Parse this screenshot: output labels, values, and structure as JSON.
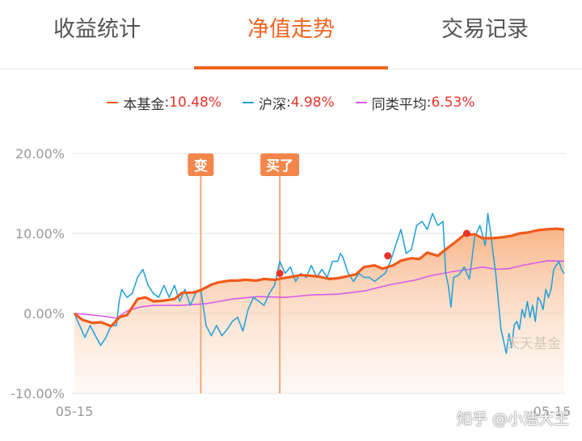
{
  "tabs": [
    {
      "label": "收益统计"
    },
    {
      "label": "净值走势"
    },
    {
      "label": "交易记录"
    }
  ],
  "active_tab": 1,
  "legend": [
    {
      "name": "本基金",
      "sep": ":",
      "value": "10.48%",
      "color": "#f05a1a"
    },
    {
      "name": "沪深",
      "sep": ":",
      "value": "4.98%",
      "color": "#2aa3d8"
    },
    {
      "name": "同类平均",
      "sep": ":",
      "value": "6.53%",
      "color": "#d85ce8"
    }
  ],
  "chart_data": {
    "type": "line",
    "x_start_label": "05-15",
    "x_end_label": "05-15",
    "ylim": [
      -10,
      20
    ],
    "yticks": [
      "20.00%",
      "10.00%",
      "0.00%",
      "-10.00%"
    ],
    "ytick_values": [
      20,
      10,
      0,
      -10
    ],
    "grid": true,
    "series": [
      {
        "name": "本基金",
        "color": "#f05a1a",
        "area_fill": true,
        "points": [
          [
            0,
            0
          ],
          [
            3,
            -0.8
          ],
          [
            7,
            -1.2
          ],
          [
            10,
            -1.1
          ],
          [
            14,
            -1.6
          ],
          [
            17,
            -0.5
          ],
          [
            20,
            -0.2
          ],
          [
            24,
            1.8
          ],
          [
            27,
            2.0
          ],
          [
            30,
            1.5
          ],
          [
            34,
            1.6
          ],
          [
            38,
            1.8
          ],
          [
            41,
            2.6
          ],
          [
            45,
            2.6
          ],
          [
            48,
            2.9
          ],
          [
            52,
            3.6
          ],
          [
            55,
            3.9
          ],
          [
            59,
            4.1
          ],
          [
            62,
            4.1
          ],
          [
            65,
            4.2
          ],
          [
            69,
            4.1
          ],
          [
            72,
            4.3
          ],
          [
            76,
            4.2
          ],
          [
            79,
            4.4
          ],
          [
            83,
            4.6
          ],
          [
            86,
            4.8
          ],
          [
            90,
            4.7
          ],
          [
            93,
            4.6
          ],
          [
            97,
            4.3
          ],
          [
            100,
            4.4
          ],
          [
            103,
            4.6
          ],
          [
            107,
            4.9
          ],
          [
            110,
            5.8
          ],
          [
            114,
            6.0
          ],
          [
            117,
            5.6
          ],
          [
            121,
            6.0
          ],
          [
            124,
            6.6
          ],
          [
            128,
            6.9
          ],
          [
            131,
            6.8
          ],
          [
            134,
            7.6
          ],
          [
            138,
            7.2
          ],
          [
            141,
            8.0
          ],
          [
            145,
            9.0
          ],
          [
            148,
            9.8
          ],
          [
            152,
            9.9
          ],
          [
            155,
            9.4
          ],
          [
            159,
            9.4
          ],
          [
            162,
            9.5
          ],
          [
            166,
            9.7
          ],
          [
            169,
            10.0
          ],
          [
            172,
            10.1
          ],
          [
            176,
            10.4
          ],
          [
            179,
            10.5
          ],
          [
            183,
            10.6
          ],
          [
            186,
            10.48
          ]
        ]
      },
      {
        "name": "沪深",
        "color": "#2aa3d8",
        "area_fill": false,
        "points": [
          [
            0,
            0
          ],
          [
            2,
            -1.5
          ],
          [
            4,
            -3.0
          ],
          [
            6,
            -1.5
          ],
          [
            8,
            -2.8
          ],
          [
            10,
            -4.0
          ],
          [
            12,
            -3.0
          ],
          [
            14,
            -1.5
          ],
          [
            16,
            -1.5
          ],
          [
            17,
            1.5
          ],
          [
            18,
            3.0
          ],
          [
            20,
            2.0
          ],
          [
            22,
            2.5
          ],
          [
            24,
            4.5
          ],
          [
            26,
            5.5
          ],
          [
            28,
            3.5
          ],
          [
            30,
            2.5
          ],
          [
            32,
            2.0
          ],
          [
            34,
            3.5
          ],
          [
            36,
            2.0
          ],
          [
            38,
            3.5
          ],
          [
            40,
            1.5
          ],
          [
            42,
            3.0
          ],
          [
            44,
            1.0
          ],
          [
            46,
            2.5
          ],
          [
            48,
            3.0
          ],
          [
            50,
            -1.5
          ],
          [
            52,
            -2.8
          ],
          [
            54,
            -1.5
          ],
          [
            56,
            -2.8
          ],
          [
            58,
            -2.0
          ],
          [
            60,
            -1.0
          ],
          [
            62,
            -0.5
          ],
          [
            64,
            -2.2
          ],
          [
            66,
            0.5
          ],
          [
            68,
            2.0
          ],
          [
            70,
            1.5
          ],
          [
            72,
            1.0
          ],
          [
            74,
            2.5
          ],
          [
            76,
            3.5
          ],
          [
            78,
            6.5
          ],
          [
            80,
            5.0
          ],
          [
            82,
            5.8
          ],
          [
            84,
            4.0
          ],
          [
            86,
            5.0
          ],
          [
            88,
            4.5
          ],
          [
            90,
            6.0
          ],
          [
            92,
            4.5
          ],
          [
            94,
            5.5
          ],
          [
            96,
            4.5
          ],
          [
            98,
            6.5
          ],
          [
            100,
            6.5
          ],
          [
            101,
            7.5
          ],
          [
            102,
            7.0
          ],
          [
            104,
            5.0
          ],
          [
            106,
            4.0
          ],
          [
            108,
            5.0
          ],
          [
            110,
            4.5
          ],
          [
            112,
            4.5
          ],
          [
            114,
            4.0
          ],
          [
            116,
            4.5
          ],
          [
            118,
            5.0
          ],
          [
            120,
            6.5
          ],
          [
            122,
            8.5
          ],
          [
            124,
            10.5
          ],
          [
            126,
            7.5
          ],
          [
            128,
            8.0
          ],
          [
            130,
            11.0
          ],
          [
            132,
            11.5
          ],
          [
            134,
            10.5
          ],
          [
            136,
            12.5
          ],
          [
            138,
            11.0
          ],
          [
            140,
            11.5
          ],
          [
            141,
            5.0
          ],
          [
            142,
            3.5
          ],
          [
            143,
            0.8
          ],
          [
            144,
            4.5
          ],
          [
            146,
            4.8
          ],
          [
            148,
            5.8
          ],
          [
            150,
            4.3
          ],
          [
            152,
            9.5
          ],
          [
            154,
            11.0
          ],
          [
            156,
            8.5
          ],
          [
            157,
            12.5
          ],
          [
            158,
            10.2
          ],
          [
            159,
            7.5
          ],
          [
            160,
            5.0
          ],
          [
            161,
            1.5
          ],
          [
            162,
            -2.0
          ],
          [
            163,
            -3.5
          ],
          [
            164,
            -5.0
          ],
          [
            165,
            -2.5
          ],
          [
            166,
            -4.3
          ],
          [
            167,
            -1.5
          ],
          [
            168,
            -1.0
          ],
          [
            169,
            -2.0
          ],
          [
            170,
            0.5
          ],
          [
            171,
            -0.5
          ],
          [
            172,
            1.5
          ],
          [
            173,
            -0.5
          ],
          [
            174,
            1.0
          ],
          [
            175,
            -1.0
          ],
          [
            176,
            2.0
          ],
          [
            177,
            1.5
          ],
          [
            178,
            0.5
          ],
          [
            179,
            3.0
          ],
          [
            180,
            2.0
          ],
          [
            181,
            3.0
          ],
          [
            182,
            5.5
          ],
          [
            183,
            6.0
          ],
          [
            184,
            6.5
          ],
          [
            185,
            5.5
          ],
          [
            186,
            4.98
          ]
        ]
      },
      {
        "name": "同类平均",
        "color": "#d85ce8",
        "area_fill": false,
        "points": [
          [
            0,
            0
          ],
          [
            10,
            -0.3
          ],
          [
            16,
            -0.6
          ],
          [
            20,
            0.3
          ],
          [
            25,
            0.8
          ],
          [
            30,
            1.0
          ],
          [
            40,
            1.0
          ],
          [
            50,
            1.2
          ],
          [
            60,
            1.8
          ],
          [
            70,
            2.1
          ],
          [
            80,
            2.0
          ],
          [
            90,
            2.3
          ],
          [
            100,
            2.4
          ],
          [
            110,
            2.8
          ],
          [
            120,
            3.6
          ],
          [
            130,
            4.2
          ],
          [
            135,
            4.7
          ],
          [
            140,
            5.0
          ],
          [
            145,
            5.3
          ],
          [
            150,
            5.5
          ],
          [
            155,
            5.8
          ],
          [
            160,
            5.5
          ],
          [
            165,
            5.6
          ],
          [
            170,
            6.0
          ],
          [
            175,
            6.3
          ],
          [
            180,
            6.6
          ],
          [
            186,
            6.53
          ]
        ]
      }
    ],
    "markers": [
      {
        "label": "变",
        "x": 48
      },
      {
        "label": "买了",
        "x": 78
      }
    ],
    "dots": [
      [
        78,
        5.0
      ],
      [
        119,
        7.2
      ],
      [
        149,
        10.0
      ]
    ]
  },
  "watermark": "天天基金",
  "credit": "知乎 @小浩大王"
}
